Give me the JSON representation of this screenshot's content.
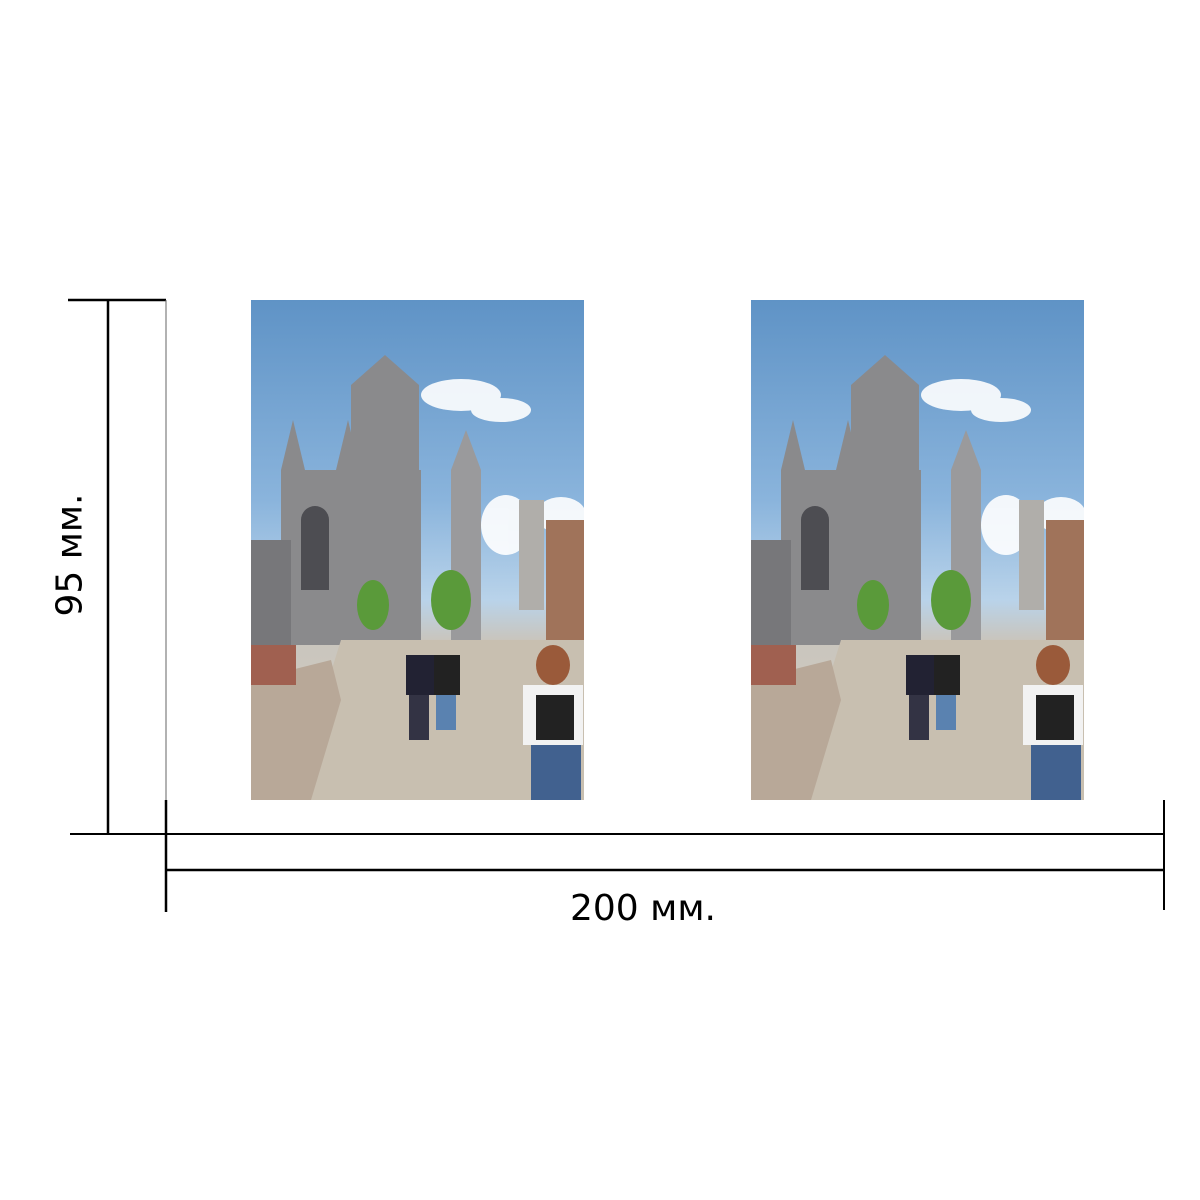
{
  "dimensions": {
    "height_label": "95 мм.",
    "width_label": "200 мм."
  },
  "photos": [
    {
      "subject": "cathedral-street-scene"
    },
    {
      "subject": "cathedral-street-scene"
    }
  ],
  "colors": {
    "line": "#000000",
    "sky": "#6f9fd0"
  }
}
